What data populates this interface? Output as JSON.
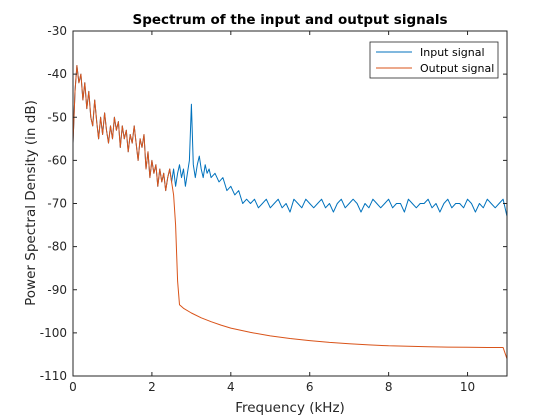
{
  "chart_data": {
    "type": "line",
    "title": "Spectrum of the input and output signals",
    "xlabel": "Frequency (kHz)",
    "ylabel": "Power Spectral Density (in dB)",
    "xlim": [
      0,
      11
    ],
    "ylim": [
      -110,
      -30
    ],
    "xticks": [
      0,
      2,
      4,
      6,
      8,
      10
    ],
    "xtick_labels": [
      "0",
      "2",
      "4",
      "6",
      "8",
      "10"
    ],
    "yticks": [
      -110,
      -100,
      -90,
      -80,
      -70,
      -60,
      -50,
      -40,
      -30
    ],
    "ytick_labels": [
      "-110",
      "-100",
      "-90",
      "-80",
      "-70",
      "-60",
      "-50",
      "-40",
      "-30"
    ],
    "grid": false,
    "legend_position": "top-right",
    "series": [
      {
        "name": "Input signal",
        "color": "#0072BD",
        "x": [
          0.0,
          0.05,
          0.1,
          0.15,
          0.2,
          0.25,
          0.3,
          0.35,
          0.4,
          0.45,
          0.5,
          0.55,
          0.6,
          0.65,
          0.7,
          0.75,
          0.8,
          0.85,
          0.9,
          0.95,
          1.0,
          1.05,
          1.1,
          1.15,
          1.2,
          1.25,
          1.3,
          1.35,
          1.4,
          1.45,
          1.5,
          1.55,
          1.6,
          1.65,
          1.7,
          1.75,
          1.8,
          1.85,
          1.9,
          1.95,
          2.0,
          2.05,
          2.1,
          2.15,
          2.2,
          2.25,
          2.3,
          2.35,
          2.4,
          2.45,
          2.5,
          2.55,
          2.6,
          2.65,
          2.7,
          2.75,
          2.8,
          2.85,
          2.9,
          2.95,
          3.0,
          3.05,
          3.1,
          3.15,
          3.2,
          3.25,
          3.3,
          3.35,
          3.4,
          3.45,
          3.5,
          3.6,
          3.7,
          3.8,
          3.9,
          4.0,
          4.1,
          4.2,
          4.3,
          4.4,
          4.5,
          4.6,
          4.7,
          4.8,
          4.9,
          5.0,
          5.1,
          5.2,
          5.3,
          5.4,
          5.5,
          5.6,
          5.7,
          5.8,
          5.9,
          6.0,
          6.1,
          6.2,
          6.3,
          6.4,
          6.5,
          6.6,
          6.7,
          6.8,
          6.9,
          7.0,
          7.1,
          7.2,
          7.3,
          7.4,
          7.5,
          7.6,
          7.7,
          7.8,
          7.9,
          8.0,
          8.1,
          8.2,
          8.3,
          8.4,
          8.5,
          8.6,
          8.7,
          8.8,
          8.9,
          9.0,
          9.1,
          9.2,
          9.3,
          9.4,
          9.5,
          9.6,
          9.7,
          9.8,
          9.9,
          10.0,
          10.1,
          10.2,
          10.3,
          10.4,
          10.5,
          10.6,
          10.7,
          10.8,
          10.9,
          11.0
        ],
        "y": [
          -56,
          -44,
          -38,
          -42,
          -40,
          -46,
          -42,
          -48,
          -44,
          -50,
          -52,
          -46,
          -51,
          -55,
          -50,
          -54,
          -49,
          -53,
          -56,
          -52,
          -55,
          -50,
          -53,
          -51,
          -57,
          -52,
          -55,
          -53,
          -58,
          -54,
          -56,
          -52,
          -56,
          -60,
          -55,
          -57,
          -54,
          -62,
          -58,
          -64,
          -60,
          -63,
          -61,
          -66,
          -62,
          -65,
          -63,
          -67,
          -64,
          -62,
          -65,
          -62,
          -66,
          -63,
          -61,
          -64,
          -62,
          -66,
          -63,
          -60,
          -47,
          -61,
          -64,
          -61,
          -59,
          -62,
          -64,
          -61,
          -63,
          -62,
          -64,
          -63,
          -65,
          -64,
          -67,
          -66,
          -68,
          -67,
          -70,
          -69,
          -70,
          -69,
          -71,
          -70,
          -69,
          -71,
          -70,
          -69,
          -71,
          -70,
          -72,
          -69,
          -70,
          -71,
          -69,
          -70,
          -71,
          -70,
          -69,
          -71,
          -70,
          -72,
          -70,
          -69,
          -71,
          -70,
          -69,
          -70,
          -72,
          -70,
          -71,
          -69,
          -70,
          -71,
          -70,
          -69,
          -71,
          -70,
          -70,
          -72,
          -69,
          -70,
          -71,
          -70,
          -70,
          -69,
          -71,
          -70,
          -72,
          -70,
          -69,
          -71,
          -70,
          -70,
          -71,
          -69,
          -70,
          -72,
          -70,
          -71,
          -69,
          -70,
          -71,
          -70,
          -69,
          -73
        ]
      },
      {
        "name": "Output signal",
        "color": "#D95319",
        "x": [
          0.0,
          0.05,
          0.1,
          0.15,
          0.2,
          0.25,
          0.3,
          0.35,
          0.4,
          0.45,
          0.5,
          0.55,
          0.6,
          0.65,
          0.7,
          0.75,
          0.8,
          0.85,
          0.9,
          0.95,
          1.0,
          1.05,
          1.1,
          1.15,
          1.2,
          1.25,
          1.3,
          1.35,
          1.4,
          1.45,
          1.5,
          1.55,
          1.6,
          1.65,
          1.7,
          1.75,
          1.8,
          1.85,
          1.9,
          1.95,
          2.0,
          2.05,
          2.1,
          2.15,
          2.2,
          2.25,
          2.3,
          2.35,
          2.4,
          2.45,
          2.5,
          2.55,
          2.6,
          2.65,
          2.7,
          2.8,
          3.0,
          3.25,
          3.5,
          3.75,
          4.0,
          4.5,
          5.0,
          5.5,
          6.0,
          6.5,
          7.0,
          7.5,
          8.0,
          8.5,
          9.0,
          9.5,
          10.0,
          10.5,
          10.9,
          11.0
        ],
        "y": [
          -56,
          -44,
          -38,
          -42,
          -40,
          -46,
          -42,
          -48,
          -44,
          -50,
          -52,
          -46,
          -51,
          -55,
          -50,
          -54,
          -49,
          -53,
          -56,
          -52,
          -55,
          -50,
          -53,
          -51,
          -57,
          -52,
          -55,
          -53,
          -58,
          -54,
          -56,
          -52,
          -56,
          -60,
          -55,
          -57,
          -54,
          -62,
          -58,
          -64,
          -60,
          -63,
          -61,
          -66,
          -62,
          -65,
          -63,
          -67,
          -64,
          -62,
          -65,
          -68,
          -75,
          -88,
          -93.5,
          -94.3,
          -95.4,
          -96.5,
          -97.4,
          -98.2,
          -98.9,
          -99.9,
          -100.7,
          -101.3,
          -101.8,
          -102.2,
          -102.5,
          -102.8,
          -103.0,
          -103.1,
          -103.2,
          -103.3,
          -103.35,
          -103.4,
          -103.4,
          -106
        ]
      }
    ]
  }
}
